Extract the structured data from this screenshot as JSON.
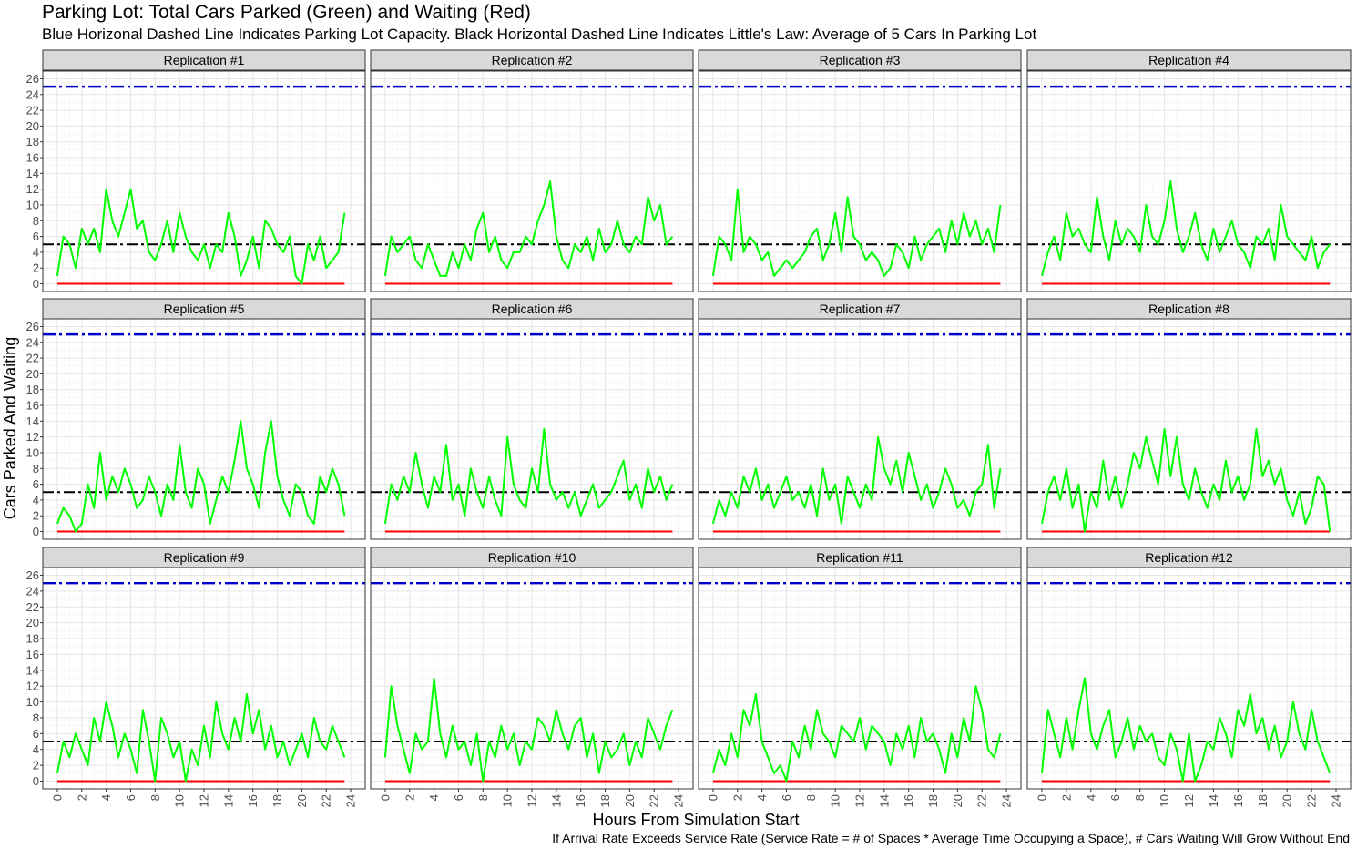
{
  "title": "Parking Lot: Total Cars Parked (Green) and Waiting (Red)",
  "subtitle": "Blue Horizonal Dashed Line Indicates Parking Lot Capacity.  Black Horizontal Dashed Line Indicates Little's Law: Average of 5 Cars In Parking Lot",
  "caption": "If Arrival Rate Exceeds Service Rate (Service Rate = # of Spaces * Average Time Occupying a Space), # Cars Waiting Will Grow Without End",
  "colors": {
    "parked": "#00ff00",
    "waiting": "#ff0000",
    "capacity": "#0000cd",
    "littles_law": "#000000"
  },
  "chart_data": {
    "type": "line",
    "facets": "4 columns x 3 rows",
    "xlabel": "Hours From Simulation Start",
    "ylabel": "Cars Parked And Waiting",
    "xlim": [
      0,
      24
    ],
    "ylim": [
      0,
      26
    ],
    "x_ticks": [
      "0",
      "2",
      "4",
      "6",
      "8",
      "10",
      "12",
      "14",
      "16",
      "18",
      "20",
      "22",
      "24"
    ],
    "y_ticks": [
      "0",
      "2",
      "4",
      "6",
      "8",
      "10",
      "12",
      "14",
      "16",
      "18",
      "20",
      "22",
      "24",
      "26"
    ],
    "grid": true,
    "reference_lines": [
      {
        "name": "Parking Lot Capacity",
        "y": 25,
        "style": "dash-dot",
        "color": "blue"
      },
      {
        "name": "Little's Law average",
        "y": 5,
        "style": "dash-dot",
        "color": "black"
      }
    ],
    "series_x_hours": [
      0,
      0.5,
      1,
      1.5,
      2,
      2.5,
      3,
      3.5,
      4,
      4.5,
      5,
      5.5,
      6,
      6.5,
      7,
      7.5,
      8,
      8.5,
      9,
      9.5,
      10,
      10.5,
      11,
      11.5,
      12,
      12.5,
      13,
      13.5,
      14,
      14.5,
      15,
      15.5,
      16,
      16.5,
      17,
      17.5,
      18,
      18.5,
      19,
      19.5,
      20,
      20.5,
      21,
      21.5,
      22,
      22.5,
      23,
      23.5
    ],
    "panels": [
      {
        "label": "Replication #1",
        "waiting": 0,
        "parked": [
          1,
          6,
          5,
          2,
          7,
          5,
          7,
          4,
          12,
          8,
          6,
          9,
          12,
          7,
          8,
          4,
          3,
          5,
          8,
          4,
          9,
          6,
          4,
          3,
          5,
          2,
          5,
          4,
          9,
          6,
          1,
          3,
          6,
          2,
          8,
          7,
          5,
          4,
          6,
          1,
          0,
          5,
          3,
          6,
          2,
          3,
          4,
          9
        ]
      },
      {
        "label": "Replication #2",
        "waiting": 0,
        "parked": [
          1,
          6,
          4,
          5,
          6,
          3,
          2,
          5,
          3,
          1,
          1,
          4,
          2,
          5,
          3,
          7,
          9,
          4,
          6,
          3,
          2,
          4,
          4,
          6,
          5,
          8,
          10,
          13,
          6,
          3,
          2,
          5,
          4,
          6,
          3,
          7,
          4,
          5,
          8,
          5,
          4,
          6,
          5,
          11,
          8,
          10,
          5,
          6
        ]
      },
      {
        "label": "Replication #3",
        "waiting": 0,
        "parked": [
          1,
          6,
          5,
          3,
          12,
          4,
          6,
          5,
          3,
          4,
          1,
          2,
          3,
          2,
          3,
          4,
          6,
          7,
          3,
          5,
          9,
          4,
          11,
          6,
          5,
          3,
          4,
          3,
          1,
          2,
          5,
          4,
          2,
          6,
          3,
          5,
          6,
          7,
          4,
          8,
          5,
          9,
          6,
          8,
          5,
          7,
          4,
          10
        ]
      },
      {
        "label": "Replication #4",
        "waiting": 0,
        "parked": [
          1,
          4,
          6,
          3,
          9,
          6,
          7,
          5,
          4,
          11,
          6,
          3,
          8,
          5,
          7,
          6,
          4,
          10,
          6,
          5,
          8,
          13,
          7,
          4,
          6,
          9,
          5,
          3,
          7,
          4,
          6,
          8,
          5,
          4,
          2,
          6,
          5,
          7,
          3,
          10,
          6,
          5,
          4,
          3,
          6,
          2,
          4,
          5
        ]
      },
      {
        "label": "Replication #5",
        "waiting": 0,
        "parked": [
          1,
          3,
          2,
          0,
          1,
          6,
          3,
          10,
          4,
          7,
          5,
          8,
          6,
          3,
          4,
          7,
          5,
          2,
          6,
          4,
          11,
          5,
          3,
          8,
          6,
          1,
          4,
          7,
          5,
          9,
          14,
          8,
          6,
          3,
          10,
          14,
          7,
          4,
          2,
          6,
          5,
          2,
          1,
          7,
          5,
          8,
          6,
          2
        ]
      },
      {
        "label": "Replication #6",
        "waiting": 0,
        "parked": [
          1,
          6,
          4,
          7,
          5,
          10,
          6,
          3,
          7,
          5,
          11,
          4,
          6,
          2,
          8,
          5,
          3,
          7,
          4,
          2,
          12,
          6,
          4,
          3,
          8,
          5,
          13,
          6,
          4,
          5,
          3,
          5,
          2,
          4,
          6,
          3,
          4,
          5,
          7,
          9,
          4,
          6,
          3,
          8,
          5,
          7,
          4,
          6
        ]
      },
      {
        "label": "Replication #7",
        "waiting": 0,
        "parked": [
          1,
          4,
          2,
          5,
          3,
          7,
          5,
          8,
          4,
          6,
          3,
          5,
          7,
          4,
          5,
          3,
          6,
          2,
          8,
          4,
          6,
          1,
          7,
          5,
          3,
          6,
          4,
          12,
          8,
          6,
          9,
          5,
          10,
          7,
          4,
          6,
          3,
          5,
          8,
          6,
          3,
          4,
          2,
          5,
          6,
          11,
          3,
          8
        ]
      },
      {
        "label": "Replication #8",
        "waiting": 0,
        "parked": [
          1,
          5,
          7,
          4,
          8,
          3,
          6,
          0,
          5,
          3,
          9,
          4,
          7,
          3,
          6,
          10,
          8,
          12,
          9,
          6,
          13,
          7,
          12,
          6,
          4,
          8,
          5,
          3,
          6,
          4,
          9,
          5,
          7,
          4,
          6,
          13,
          7,
          9,
          6,
          8,
          4,
          2,
          5,
          1,
          3,
          7,
          6,
          0
        ]
      },
      {
        "label": "Replication #9",
        "waiting": 0,
        "parked": [
          1,
          5,
          3,
          6,
          4,
          2,
          8,
          5,
          10,
          7,
          3,
          6,
          4,
          1,
          9,
          5,
          0,
          8,
          6,
          3,
          5,
          0,
          4,
          2,
          7,
          3,
          10,
          6,
          4,
          8,
          5,
          11,
          6,
          9,
          4,
          7,
          3,
          5,
          2,
          4,
          6,
          3,
          8,
          5,
          4,
          7,
          5,
          3
        ]
      },
      {
        "label": "Replication #10",
        "waiting": 0,
        "parked": [
          3,
          12,
          7,
          4,
          1,
          6,
          4,
          5,
          13,
          6,
          3,
          7,
          4,
          5,
          2,
          6,
          0,
          5,
          3,
          7,
          4,
          6,
          2,
          5,
          4,
          8,
          7,
          5,
          9,
          6,
          4,
          7,
          8,
          3,
          6,
          1,
          5,
          3,
          4,
          6,
          2,
          5,
          3,
          8,
          6,
          4,
          7,
          9
        ]
      },
      {
        "label": "Replication #11",
        "waiting": 0,
        "parked": [
          1,
          4,
          2,
          6,
          3,
          9,
          7,
          11,
          5,
          3,
          1,
          2,
          0,
          5,
          3,
          7,
          4,
          9,
          6,
          5,
          3,
          7,
          6,
          5,
          8,
          4,
          7,
          6,
          5,
          2,
          6,
          4,
          7,
          3,
          8,
          5,
          6,
          4,
          1,
          6,
          3,
          8,
          5,
          12,
          9,
          4,
          3,
          6
        ]
      },
      {
        "label": "Replication #12",
        "waiting": 0,
        "parked": [
          1,
          9,
          6,
          3,
          8,
          4,
          9,
          13,
          6,
          4,
          7,
          9,
          3,
          5,
          8,
          4,
          7,
          5,
          6,
          3,
          2,
          6,
          4,
          0,
          6,
          0,
          2,
          5,
          4,
          8,
          6,
          3,
          9,
          7,
          11,
          6,
          8,
          4,
          7,
          3,
          5,
          10,
          6,
          4,
          9,
          5,
          3,
          1
        ]
      }
    ]
  }
}
